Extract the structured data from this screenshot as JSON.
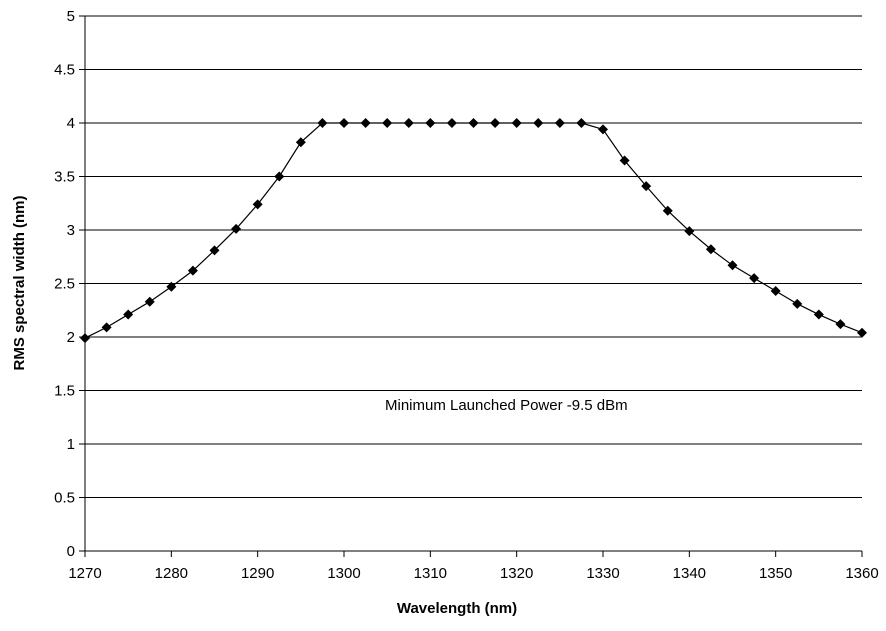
{
  "chart_data": {
    "type": "line",
    "xlabel": "Wavelength (nm)",
    "ylabel": "RMS spectral width (nm)",
    "xlim": [
      1270,
      1360
    ],
    "ylim": [
      0,
      5
    ],
    "x_ticks": [
      "1270",
      "1280",
      "1290",
      "1300",
      "1310",
      "1320",
      "1330",
      "1340",
      "1350",
      "1360"
    ],
    "y_ticks": [
      "0",
      "0.5",
      "1",
      "1.5",
      "2",
      "2.5",
      "3",
      "3.5",
      "4",
      "4.5",
      "5"
    ],
    "grid": "horizontal",
    "marker": "diamond",
    "annotation": "Minimum Launched Power -9.5 dBm",
    "colors": {
      "line": "#000000",
      "marker": "#000000",
      "grid": "#000000"
    },
    "series": [
      {
        "x": [
          1270,
          1272.5,
          1275,
          1277.5,
          1280,
          1282.5,
          1285,
          1287.5,
          1290,
          1292.5,
          1295,
          1297.5,
          1300,
          1302.5,
          1305,
          1307.5,
          1310,
          1312.5,
          1315,
          1317.5,
          1320,
          1322.5,
          1325,
          1327.5,
          1330,
          1332.5,
          1335,
          1337.5,
          1340,
          1342.5,
          1345,
          1347.5,
          1350,
          1352.5,
          1355,
          1357.5,
          1360
        ],
        "values": [
          1.99,
          2.09,
          2.21,
          2.33,
          2.47,
          2.62,
          2.81,
          3.01,
          3.24,
          3.5,
          3.82,
          4.0,
          4.0,
          4.0,
          4.0,
          4.0,
          4.0,
          4.0,
          4.0,
          4.0,
          4.0,
          4.0,
          4.0,
          4.0,
          3.94,
          3.65,
          3.41,
          3.18,
          2.99,
          2.82,
          2.67,
          2.55,
          2.43,
          2.31,
          2.21,
          2.12,
          2.04
        ]
      }
    ]
  }
}
